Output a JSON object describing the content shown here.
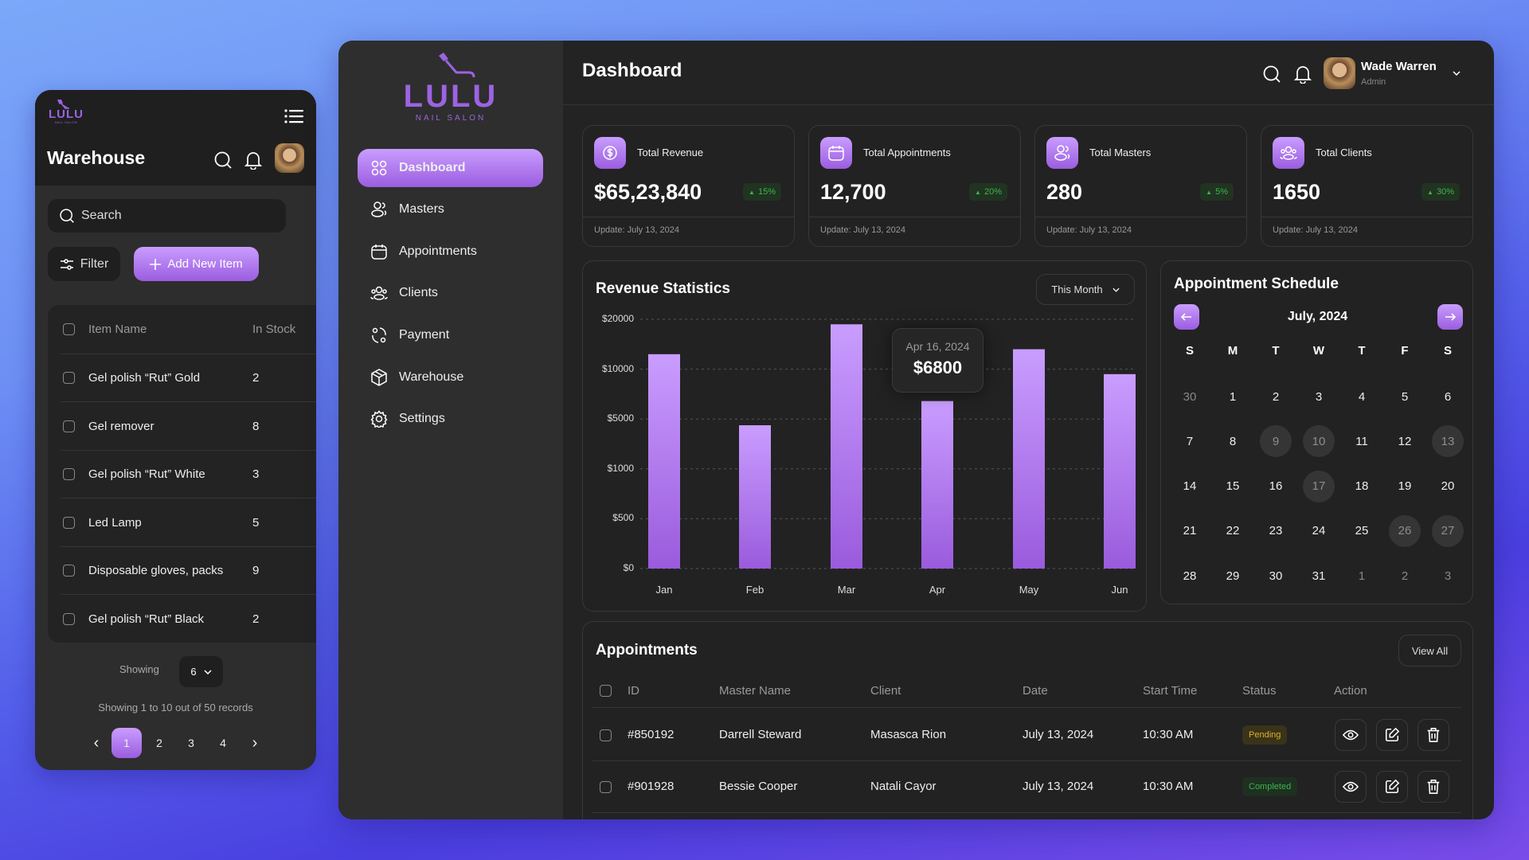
{
  "warehouse_panel": {
    "logo": {
      "name": "LULU",
      "tagline": "NAIL SALON"
    },
    "title": "Warehouse",
    "search_placeholder": "Search",
    "filter_label": "Filter",
    "add_label": "Add New Item",
    "columns": [
      "Item Name",
      "In Stock"
    ],
    "items": [
      {
        "name": "Gel polish “Rut” Gold",
        "stock": "2"
      },
      {
        "name": "Gel remover",
        "stock": "8"
      },
      {
        "name": "Gel polish “Rut” White",
        "stock": "3"
      },
      {
        "name": "Led Lamp",
        "stock": "5"
      },
      {
        "name": "Disposable gloves, packs",
        "stock": "9"
      },
      {
        "name": "Gel polish “Rut” Black",
        "stock": "2"
      }
    ],
    "showing_label": "Showing",
    "page_size": "6",
    "records_text": "Showing 1 to 10 out of 50 records",
    "pages": [
      "1",
      "2",
      "3",
      "4"
    ],
    "active_page": "1"
  },
  "app": {
    "logo": {
      "name": "LULU",
      "tagline": "NAIL SALON"
    },
    "nav": [
      {
        "label": "Dashboard",
        "icon": "grid-icon",
        "active": true
      },
      {
        "label": "Masters",
        "icon": "users-icon"
      },
      {
        "label": "Appointments",
        "icon": "calendar-icon"
      },
      {
        "label": "Clients",
        "icon": "clients-icon"
      },
      {
        "label": "Payment",
        "icon": "payment-icon"
      },
      {
        "label": "Warehouse",
        "icon": "box-icon"
      },
      {
        "label": "Settings",
        "icon": "gear-icon"
      }
    ]
  },
  "header": {
    "title": "Dashboard",
    "user": {
      "name": "Wade Warren",
      "role": "Admin"
    }
  },
  "stats": [
    {
      "label": "Total Revenue",
      "value": "$65,23,840",
      "change": "15%",
      "updated": "Update: July 13, 2024",
      "icon": "dollar-icon"
    },
    {
      "label": "Total Appointments",
      "value": "12,700",
      "change": "20%",
      "updated": "Update: July 13, 2024",
      "icon": "calendar-icon"
    },
    {
      "label": "Total Masters",
      "value": "280",
      "change": "5%",
      "updated": "Update: July 13, 2024",
      "icon": "users-icon"
    },
    {
      "label": "Total Clients",
      "value": "1650",
      "change": "30%",
      "updated": "Update: July 13, 2024",
      "icon": "clients-icon"
    }
  ],
  "revenue": {
    "title": "Revenue Statistics",
    "period": "This Month",
    "tooltip": {
      "date": "Apr 16, 2024",
      "value": "$6800"
    }
  },
  "chart_data": {
    "type": "bar",
    "title": "Revenue Statistics",
    "categories": [
      "Jan",
      "Feb",
      "Mar",
      "Apr",
      "May",
      "Jun"
    ],
    "values": [
      13000,
      4500,
      19000,
      6800,
      14000,
      9500
    ],
    "y_ticks": [
      0,
      500,
      1000,
      5000,
      10000,
      20000
    ],
    "y_tick_labels": [
      "$0",
      "$500",
      "$1000",
      "$5000",
      "$10000",
      "$20000"
    ],
    "ylim": [
      0,
      20000
    ],
    "grid": true,
    "xlabel": "",
    "ylabel": ""
  },
  "schedule": {
    "title": "Appointment Schedule",
    "month": "July, 2024",
    "weekdays": [
      "S",
      "M",
      "T",
      "W",
      "T",
      "F",
      "S"
    ],
    "days": [
      {
        "d": "30",
        "muted": true
      },
      {
        "d": "1"
      },
      {
        "d": "2"
      },
      {
        "d": "3"
      },
      {
        "d": "4"
      },
      {
        "d": "5"
      },
      {
        "d": "6"
      },
      {
        "d": "7"
      },
      {
        "d": "8"
      },
      {
        "d": "9",
        "hl": true
      },
      {
        "d": "10",
        "hl": true
      },
      {
        "d": "11"
      },
      {
        "d": "12"
      },
      {
        "d": "13",
        "hl": true
      },
      {
        "d": "14"
      },
      {
        "d": "15"
      },
      {
        "d": "16"
      },
      {
        "d": "17",
        "hl": true
      },
      {
        "d": "18"
      },
      {
        "d": "19"
      },
      {
        "d": "20"
      },
      {
        "d": "21"
      },
      {
        "d": "22"
      },
      {
        "d": "23"
      },
      {
        "d": "24"
      },
      {
        "d": "25"
      },
      {
        "d": "26",
        "hl": true
      },
      {
        "d": "27",
        "hl": true
      },
      {
        "d": "28"
      },
      {
        "d": "29"
      },
      {
        "d": "30"
      },
      {
        "d": "31"
      },
      {
        "d": "1",
        "muted": true
      },
      {
        "d": "2",
        "muted": true
      },
      {
        "d": "3",
        "muted": true
      }
    ]
  },
  "appointments": {
    "title": "Appointments",
    "view_all": "View All",
    "columns": [
      "ID",
      "Master Name",
      "Client",
      "Date",
      "Start Time",
      "Status",
      "Action"
    ],
    "rows": [
      {
        "id": "#850192",
        "master": "Darrell Steward",
        "client": "Masasca Rion",
        "date": "July 13, 2024",
        "time": "10:30 AM",
        "status": "Pending"
      },
      {
        "id": "#901928",
        "master": "Bessie Cooper",
        "client": "Natali Cayor",
        "date": "July 13, 2024",
        "time": "10:30 AM",
        "status": "Completed"
      }
    ]
  },
  "colors": {
    "accent": "#a970ec",
    "pending": "#d9b02c",
    "completed": "#3fb34f",
    "positive": "#3fb34f"
  }
}
